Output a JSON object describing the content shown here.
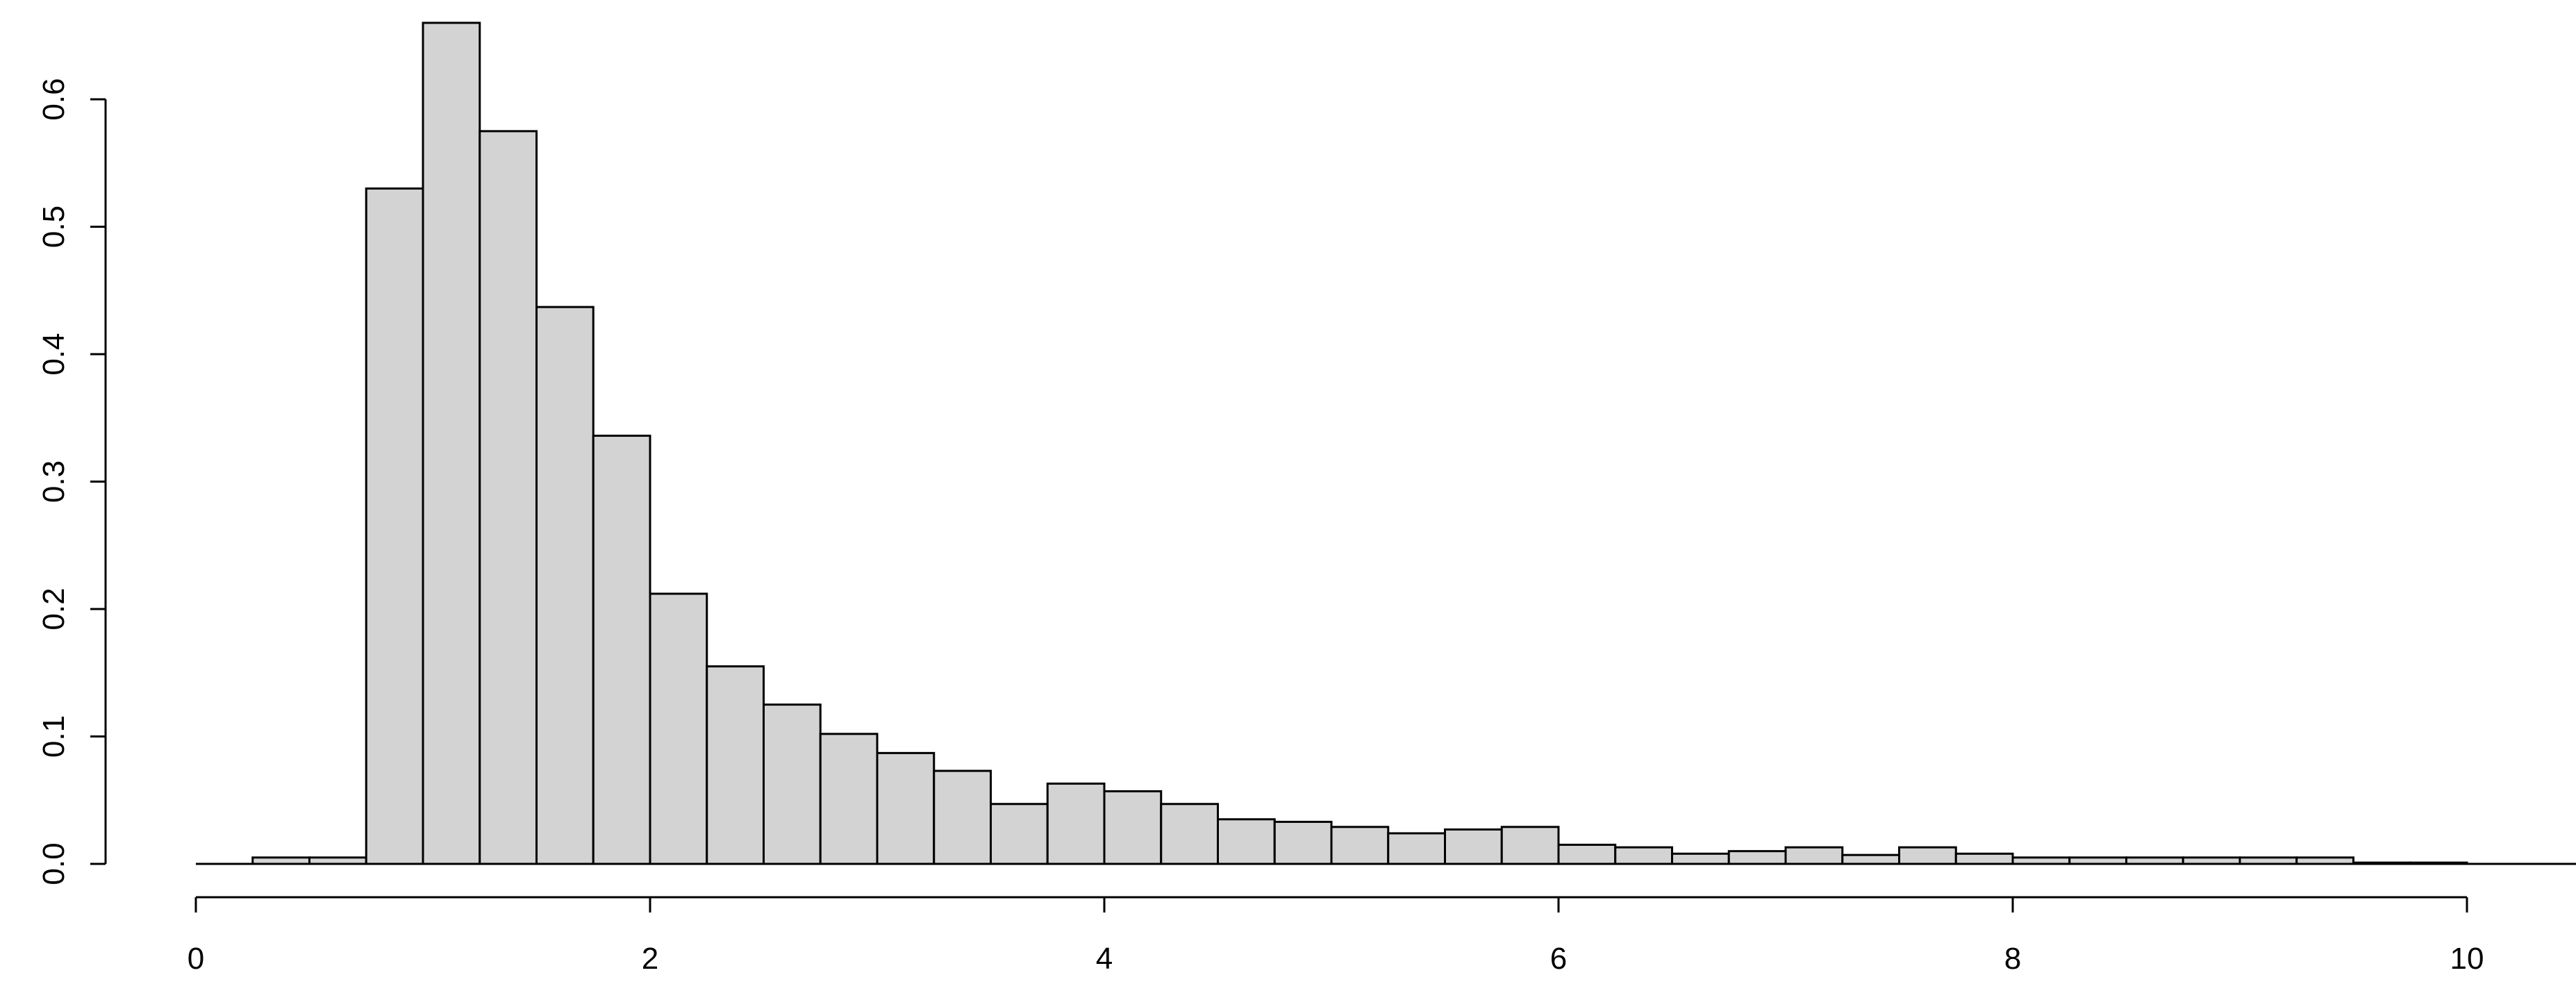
{
  "chart_data": {
    "type": "bar",
    "subtype": "histogram",
    "title": "",
    "xlabel": "",
    "ylabel": "",
    "bin_width": 0.25,
    "bins_start": [
      0.25,
      0.5,
      0.75,
      1.0,
      1.25,
      1.5,
      1.75,
      2.0,
      2.25,
      2.5,
      2.75,
      3.0,
      3.25,
      3.5,
      3.75,
      4.0,
      4.25,
      4.5,
      4.75,
      5.0,
      5.25,
      5.5,
      5.75,
      6.0,
      6.25,
      6.5,
      6.75,
      7.0,
      7.25,
      7.5,
      7.75,
      8.0,
      8.25,
      8.5,
      8.75,
      9.0,
      9.25,
      9.5,
      9.75
    ],
    "values": [
      0.005,
      0.005,
      0.53,
      0.66,
      0.575,
      0.437,
      0.336,
      0.212,
      0.155,
      0.125,
      0.102,
      0.087,
      0.073,
      0.047,
      0.063,
      0.057,
      0.047,
      0.035,
      0.033,
      0.029,
      0.024,
      0.027,
      0.029,
      0.015,
      0.013,
      0.008,
      0.01,
      0.013,
      0.007,
      0.013,
      0.008,
      0.005,
      0.005,
      0.005,
      0.005,
      0.005,
      0.005,
      0.001,
      0.001
    ],
    "baseline_range": [
      0,
      10.5
    ],
    "xlim": [
      0,
      10
    ],
    "ylim": [
      0,
      0.6
    ],
    "x_ticks": [
      "0",
      "2",
      "4",
      "6",
      "8",
      "10"
    ],
    "y_ticks": [
      "0.0",
      "0.1",
      "0.2",
      "0.3",
      "0.4",
      "0.5",
      "0.6"
    ],
    "grid": false,
    "legend": "none",
    "bar_fill": "#d3d3d3",
    "bar_stroke": "#000000"
  }
}
